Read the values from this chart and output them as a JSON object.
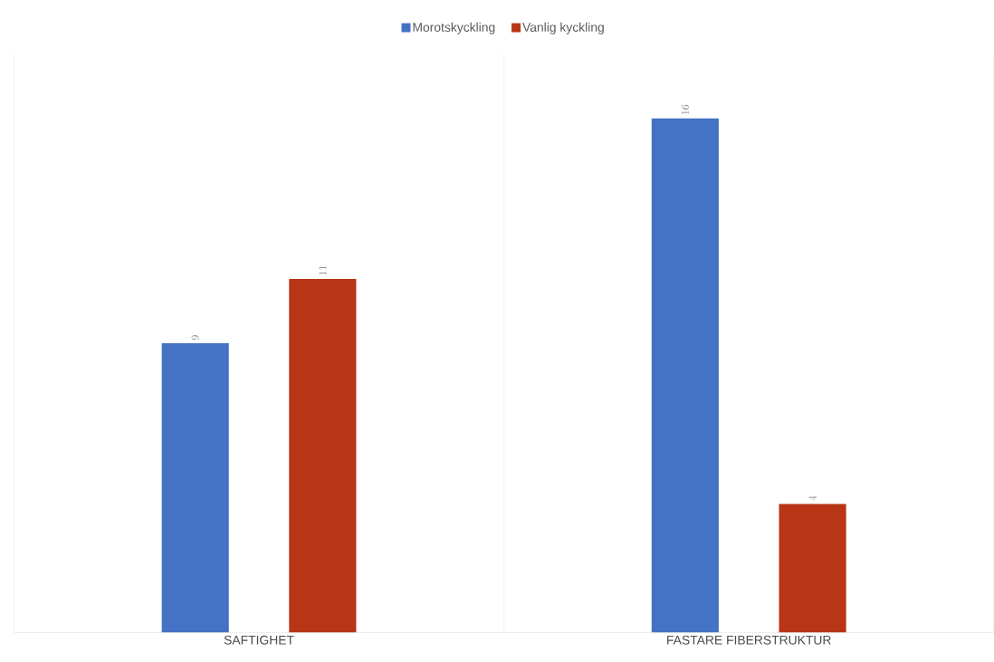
{
  "chart_data": {
    "type": "bar",
    "categories": [
      "SAFTIGHET",
      "FASTARE FIBERSTRUKTUR"
    ],
    "series": [
      {
        "name": "Morotskyckling",
        "color": "#4472c4",
        "values": [
          9,
          16
        ]
      },
      {
        "name": "Vanlig kyckling",
        "color": "#b83515",
        "values": [
          11,
          4
        ]
      }
    ],
    "data_labels": true,
    "legend": "top",
    "grid": "x"
  }
}
